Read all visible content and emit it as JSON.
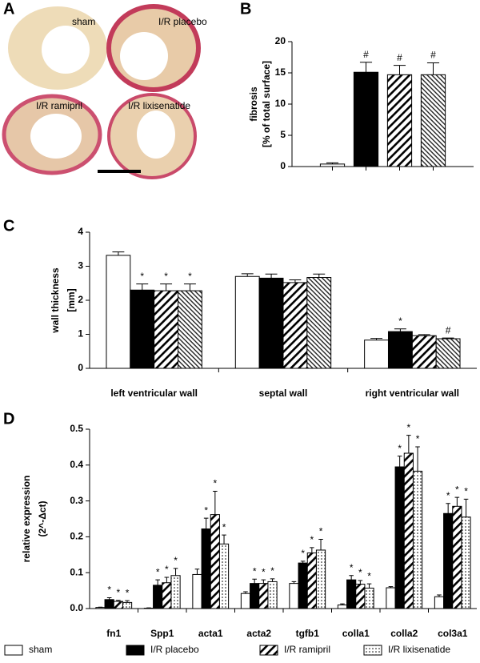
{
  "panels": [
    "A",
    "B",
    "C",
    "D"
  ],
  "image_labels": [
    "sham",
    "I/R placebo",
    "I/R ramipril",
    "I/R lixisenatide"
  ],
  "chart_data": [
    {
      "type": "bar",
      "ylabel": [
        "fibrosis",
        "[% of total surface]"
      ],
      "categories": [
        null
      ],
      "series": [
        {
          "color": "#ffffff",
          "pattern": "white",
          "values": [
            0.4
          ],
          "errors": [
            0.2
          ],
          "markers": [
            null
          ]
        },
        {
          "color": "#000000",
          "pattern": "solid",
          "values": [
            15.1
          ],
          "errors": [
            1.6
          ],
          "markers": [
            "#"
          ]
        },
        {
          "color": "#000000",
          "pattern": "hatch",
          "values": [
            14.7
          ],
          "errors": [
            1.5
          ],
          "markers": [
            "#"
          ]
        },
        {
          "color": "#000000",
          "pattern": "fine-hatch",
          "values": [
            14.7
          ],
          "errors": [
            1.9
          ],
          "markers": [
            "#"
          ]
        }
      ],
      "ylim": [
        0,
        20
      ],
      "yticks": [
        0,
        5,
        10,
        15,
        20
      ]
    },
    {
      "type": "bar",
      "ylabel": [
        "wall thickness",
        "[mm]"
      ],
      "categories": [
        "left ventricular wall",
        "septal wall",
        "right ventricular wall"
      ],
      "series": [
        {
          "color": "#ffffff",
          "pattern": "white",
          "values": [
            3.32,
            2.7,
            0.83
          ],
          "errors": [
            0.1,
            0.08,
            0.05
          ],
          "markers": [
            null,
            null,
            null
          ]
        },
        {
          "color": "#000000",
          "pattern": "solid",
          "values": [
            2.3,
            2.65,
            1.08
          ],
          "errors": [
            0.18,
            0.12,
            0.08
          ],
          "markers": [
            "*",
            null,
            "*"
          ]
        },
        {
          "color": "#000000",
          "pattern": "hatch",
          "values": [
            2.28,
            2.52,
            0.96
          ],
          "errors": [
            0.2,
            0.08,
            0.03
          ],
          "markers": [
            "*",
            null,
            null
          ]
        },
        {
          "color": "#000000",
          "pattern": "fine-hatch",
          "values": [
            2.28,
            2.67,
            0.87
          ],
          "errors": [
            0.2,
            0.1,
            0.02
          ],
          "markers": [
            "*",
            null,
            "#"
          ]
        }
      ],
      "ylim": [
        0,
        4
      ],
      "yticks": [
        0,
        1,
        2,
        3,
        4
      ]
    },
    {
      "type": "bar",
      "ylabel": [
        "relative expression",
        "(2^-Δct)"
      ],
      "categories": [
        "fn1",
        "Spp1",
        "acta1",
        "acta2",
        "tgfb1",
        "colla1",
        "colla2",
        "col3a1"
      ],
      "series": [
        {
          "name": "sham",
          "color": "#ffffff",
          "pattern": "white",
          "values": [
            0.003,
            0.001,
            0.095,
            0.042,
            0.07,
            0.01,
            0.058,
            0.033
          ],
          "errors": [
            0.001,
            0.001,
            0.015,
            0.005,
            0.005,
            0.003,
            0.003,
            0.005
          ],
          "markers": [
            null,
            null,
            null,
            null,
            null,
            null,
            null,
            null
          ]
        },
        {
          "name": "I/R placebo",
          "color": "#000000",
          "pattern": "solid",
          "values": [
            0.025,
            0.065,
            0.222,
            0.07,
            0.127,
            0.08,
            0.395,
            0.265
          ],
          "errors": [
            0.005,
            0.015,
            0.03,
            0.012,
            0.005,
            0.012,
            0.03,
            0.028
          ],
          "markers": [
            "*",
            "*",
            "*",
            "*",
            "*",
            "*",
            "*",
            "*"
          ]
        },
        {
          "name": "I/R ramipril",
          "color": "#000000",
          "pattern": "hatch",
          "values": [
            0.02,
            0.072,
            0.262,
            0.07,
            0.155,
            0.068,
            0.433,
            0.285
          ],
          "errors": [
            0.003,
            0.015,
            0.065,
            0.01,
            0.015,
            0.01,
            0.05,
            0.025
          ],
          "markers": [
            "*",
            "*",
            "*",
            "*",
            "*",
            "*",
            "*",
            "*"
          ]
        },
        {
          "name": "I/R lixisenatide",
          "color": "#000000",
          "pattern": "dots",
          "values": [
            0.017,
            0.092,
            0.18,
            0.075,
            0.163,
            0.057,
            0.383,
            0.255
          ],
          "errors": [
            0.005,
            0.02,
            0.025,
            0.008,
            0.03,
            0.012,
            0.068,
            0.05
          ],
          "markers": [
            "*",
            "*",
            "*",
            "*",
            "*",
            "*",
            "*",
            "*"
          ]
        }
      ],
      "ylim": [
        0,
        0.5
      ],
      "yticks": [
        {
          "value": 0,
          "label": "0.0"
        },
        0.1,
        0.2,
        0.3,
        0.4,
        0.5
      ]
    }
  ]
}
